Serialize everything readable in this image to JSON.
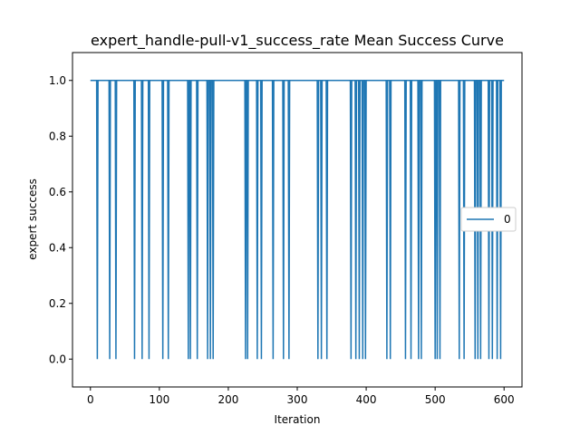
{
  "chart_data": {
    "type": "line",
    "title": "expert_handle-pull-v1_success_rate Mean Success Curve",
    "xlabel": "Iteration",
    "ylabel": "expert success",
    "xlim": [
      -26,
      626
    ],
    "ylim": [
      -0.1,
      1.1
    ],
    "xticks": [
      0,
      100,
      200,
      300,
      400,
      500,
      600
    ],
    "yticks": [
      0.0,
      0.2,
      0.4,
      0.6,
      0.8,
      1.0
    ],
    "grid": false,
    "legend": {
      "position": "center-right",
      "entries": [
        "0"
      ]
    },
    "series": [
      {
        "name": "0",
        "color": "#1f77b4",
        "x_start": 0,
        "x_end": 600,
        "default_value": 1.0,
        "zero_at_x": [
          10,
          28,
          37,
          64,
          75,
          85,
          105,
          113,
          142,
          145,
          155,
          170,
          174,
          178,
          225,
          228,
          242,
          248,
          265,
          280,
          288,
          330,
          335,
          343,
          378,
          385,
          390,
          395,
          399,
          430,
          435,
          457,
          465,
          476,
          480,
          500,
          503,
          507,
          535,
          542,
          558,
          562,
          566,
          578,
          583,
          590,
          595
        ]
      }
    ]
  }
}
